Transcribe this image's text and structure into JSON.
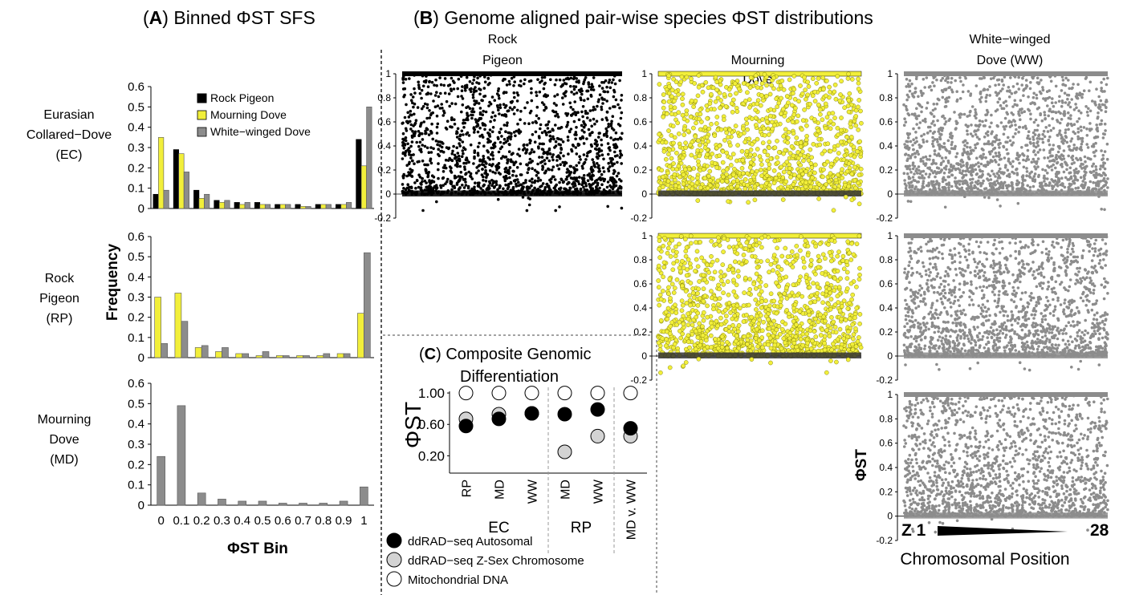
{
  "panel_a": {
    "title_letter": "A",
    "title_text": "Binned ΦST SFS",
    "ylabel": "Frequency",
    "xlabel": "ΦST Bin",
    "legend": [
      "Rock Pigeon",
      "Mourning Dove",
      "White−winged Dove"
    ],
    "row_labels": [
      [
        "Eurasian",
        "Collared−Dove",
        "(EC)"
      ],
      [
        "Rock",
        "Pigeon",
        "(RP)"
      ],
      [
        "Mourning",
        "Dove",
        "(MD)"
      ]
    ]
  },
  "panel_b": {
    "title_letter": "B",
    "title_text": "Genome aligned pair-wise species ΦST distributions",
    "columns": [
      [
        "Rock",
        "Pigeon"
      ],
      [
        "Mourning",
        "Dove"
      ],
      [
        "White−winged",
        "Dove (WW)"
      ]
    ],
    "ylabel": "ΦST",
    "xlabel": "Chromosomal Position",
    "start_label": "Z 1",
    "end_label": "28",
    "yticks": [
      "1",
      "0.8",
      "0.6",
      "0.4",
      "0.2",
      "0",
      "-0.2"
    ]
  },
  "panel_c": {
    "title_letter": "C",
    "title_line1": "Composite Genomic",
    "title_line2": "Differentiation",
    "ylabel": "ΦST",
    "yticks": [
      "1.00",
      "0.60",
      "0.20"
    ],
    "categories": [
      "RP",
      "MD",
      "WW",
      "MD",
      "WW",
      "MD v. WW"
    ],
    "groups": [
      "EC",
      "RP"
    ],
    "legend": [
      "ddRAD−seq Autosomal",
      "ddRAD−seq Z-Sex Chromosome",
      "Mitochondrial DNA"
    ]
  },
  "colors": {
    "rock_pigeon": "#000000",
    "mourning_dove": "#f2ef3a",
    "white_winged_dove": "#8c8c8c",
    "z_sex": "#d3d3d3",
    "mito": "#ffffff"
  },
  "chart_data": [
    {
      "type": "bar",
      "panel": "A",
      "row": "EC",
      "categories": [
        "0",
        "0.1",
        "0.2",
        "0.3",
        "0.4",
        "0.5",
        "0.6",
        "0.7",
        "0.8",
        "0.9",
        "1"
      ],
      "ylim": [
        0,
        0.6
      ],
      "yticks": [
        0,
        0.1,
        0.2,
        0.3,
        0.4,
        0.5,
        0.6
      ],
      "series": [
        {
          "name": "Rock Pigeon",
          "values": [
            0.07,
            0.29,
            0.09,
            0.04,
            0.03,
            0.03,
            0.02,
            0.02,
            0.02,
            0.02,
            0.34
          ]
        },
        {
          "name": "Mourning Dove",
          "values": [
            0.35,
            0.27,
            0.05,
            0.03,
            0.02,
            0.02,
            0.02,
            0.01,
            0.02,
            0.02,
            0.21
          ]
        },
        {
          "name": "White−winged Dove",
          "values": [
            0.09,
            0.18,
            0.07,
            0.04,
            0.03,
            0.02,
            0.02,
            0.01,
            0.02,
            0.03,
            0.5
          ]
        }
      ]
    },
    {
      "type": "bar",
      "panel": "A",
      "row": "RP",
      "categories": [
        "0",
        "0.1",
        "0.2",
        "0.3",
        "0.4",
        "0.5",
        "0.6",
        "0.7",
        "0.8",
        "0.9",
        "1"
      ],
      "ylim": [
        0,
        0.6
      ],
      "yticks": [
        0,
        0.1,
        0.2,
        0.3,
        0.4,
        0.5,
        0.6
      ],
      "series": [
        {
          "name": "Mourning Dove",
          "values": [
            0.3,
            0.32,
            0.05,
            0.03,
            0.02,
            0.01,
            0.01,
            0.01,
            0.01,
            0.02,
            0.22
          ]
        },
        {
          "name": "White−winged Dove",
          "values": [
            0.07,
            0.18,
            0.06,
            0.05,
            0.02,
            0.03,
            0.01,
            0.01,
            0.02,
            0.02,
            0.52
          ]
        }
      ]
    },
    {
      "type": "bar",
      "panel": "A",
      "row": "MD",
      "categories": [
        "0",
        "0.1",
        "0.2",
        "0.3",
        "0.4",
        "0.5",
        "0.6",
        "0.7",
        "0.8",
        "0.9",
        "1"
      ],
      "ylim": [
        0,
        0.6
      ],
      "yticks": [
        0,
        0.1,
        0.2,
        0.3,
        0.4,
        0.5,
        0.6
      ],
      "series": [
        {
          "name": "White−winged Dove",
          "values": [
            0.24,
            0.49,
            0.06,
            0.03,
            0.02,
            0.02,
            0.01,
            0.01,
            0.01,
            0.02,
            0.09
          ]
        }
      ]
    },
    {
      "type": "scatter",
      "panel": "C",
      "categories": [
        "RP",
        "MD",
        "WW",
        "MD",
        "WW",
        "MD v. WW"
      ],
      "groups": [
        {
          "name": "EC",
          "categories": [
            "RP",
            "MD",
            "WW"
          ]
        },
        {
          "name": "RP",
          "categories": [
            "MD",
            "WW"
          ]
        }
      ],
      "ylim": [
        0,
        1.0
      ],
      "series": [
        {
          "name": "ddRAD−seq Autosomal",
          "values": [
            0.58,
            0.67,
            0.74,
            0.73,
            0.79,
            0.55
          ]
        },
        {
          "name": "ddRAD−seq Z-Sex Chromosome",
          "values": [
            0.67,
            0.73,
            0.74,
            0.25,
            0.45,
            0.45
          ]
        },
        {
          "name": "Mitochondrial DNA",
          "values": [
            1.0,
            1.0,
            1.0,
            1.0,
            1.0,
            1.0
          ]
        }
      ]
    },
    {
      "type": "scatter",
      "panel": "B",
      "x_description": "Chromosomal Position",
      "ylim": [
        -0.2,
        1
      ],
      "yticks": [
        -0.2,
        0,
        0.2,
        0.4,
        0.6,
        0.8,
        1
      ],
      "subplots": [
        {
          "row": "EC",
          "column": "Rock Pigeon",
          "color": "#000000"
        },
        {
          "row": "EC",
          "column": "Mourning Dove",
          "color": "#f2ef3a"
        },
        {
          "row": "EC",
          "column": "White−winged Dove (WW)",
          "color": "#8c8c8c"
        },
        {
          "row": "RP",
          "column": "Mourning Dove",
          "color": "#f2ef3a"
        },
        {
          "row": "RP",
          "column": "White−winged Dove (WW)",
          "color": "#8c8c8c"
        },
        {
          "row": "MD",
          "column": "White−winged Dove (WW)",
          "color": "#8c8c8c"
        }
      ]
    }
  ]
}
